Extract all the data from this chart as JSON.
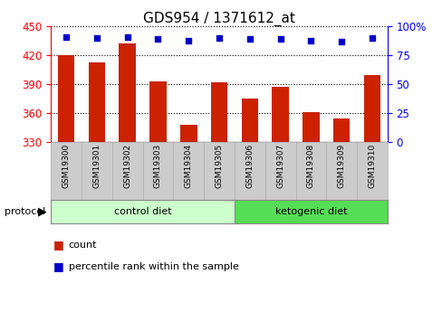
{
  "title": "GDS954 / 1371612_at",
  "samples": [
    "GSM19300",
    "GSM19301",
    "GSM19302",
    "GSM19303",
    "GSM19304",
    "GSM19305",
    "GSM19306",
    "GSM19307",
    "GSM19308",
    "GSM19309",
    "GSM19310"
  ],
  "counts": [
    420,
    413,
    432,
    393,
    348,
    392,
    375,
    387,
    361,
    354,
    400
  ],
  "percentiles": [
    91,
    90,
    91,
    89,
    88,
    90,
    89,
    89,
    88,
    87,
    90
  ],
  "ylim_left": [
    330,
    450
  ],
  "ylim_right": [
    0,
    100
  ],
  "yticks_left": [
    330,
    360,
    390,
    420,
    450
  ],
  "yticks_right": [
    0,
    25,
    50,
    75,
    100
  ],
  "bar_color": "#cc2200",
  "dot_color": "#0000cc",
  "n_control": 6,
  "n_ketogenic": 5,
  "control_label": "control diet",
  "ketogenic_label": "ketogenic diet",
  "protocol_label": "protocol",
  "bg_plot": "#ffffff",
  "bg_label_control": "#ccffcc",
  "bg_label_ketogenic": "#55dd55",
  "bg_xticklabels": "#cccccc",
  "title_fontsize": 11,
  "tick_fontsize": 8.5,
  "label_fontsize": 8,
  "legend_fontsize": 8
}
